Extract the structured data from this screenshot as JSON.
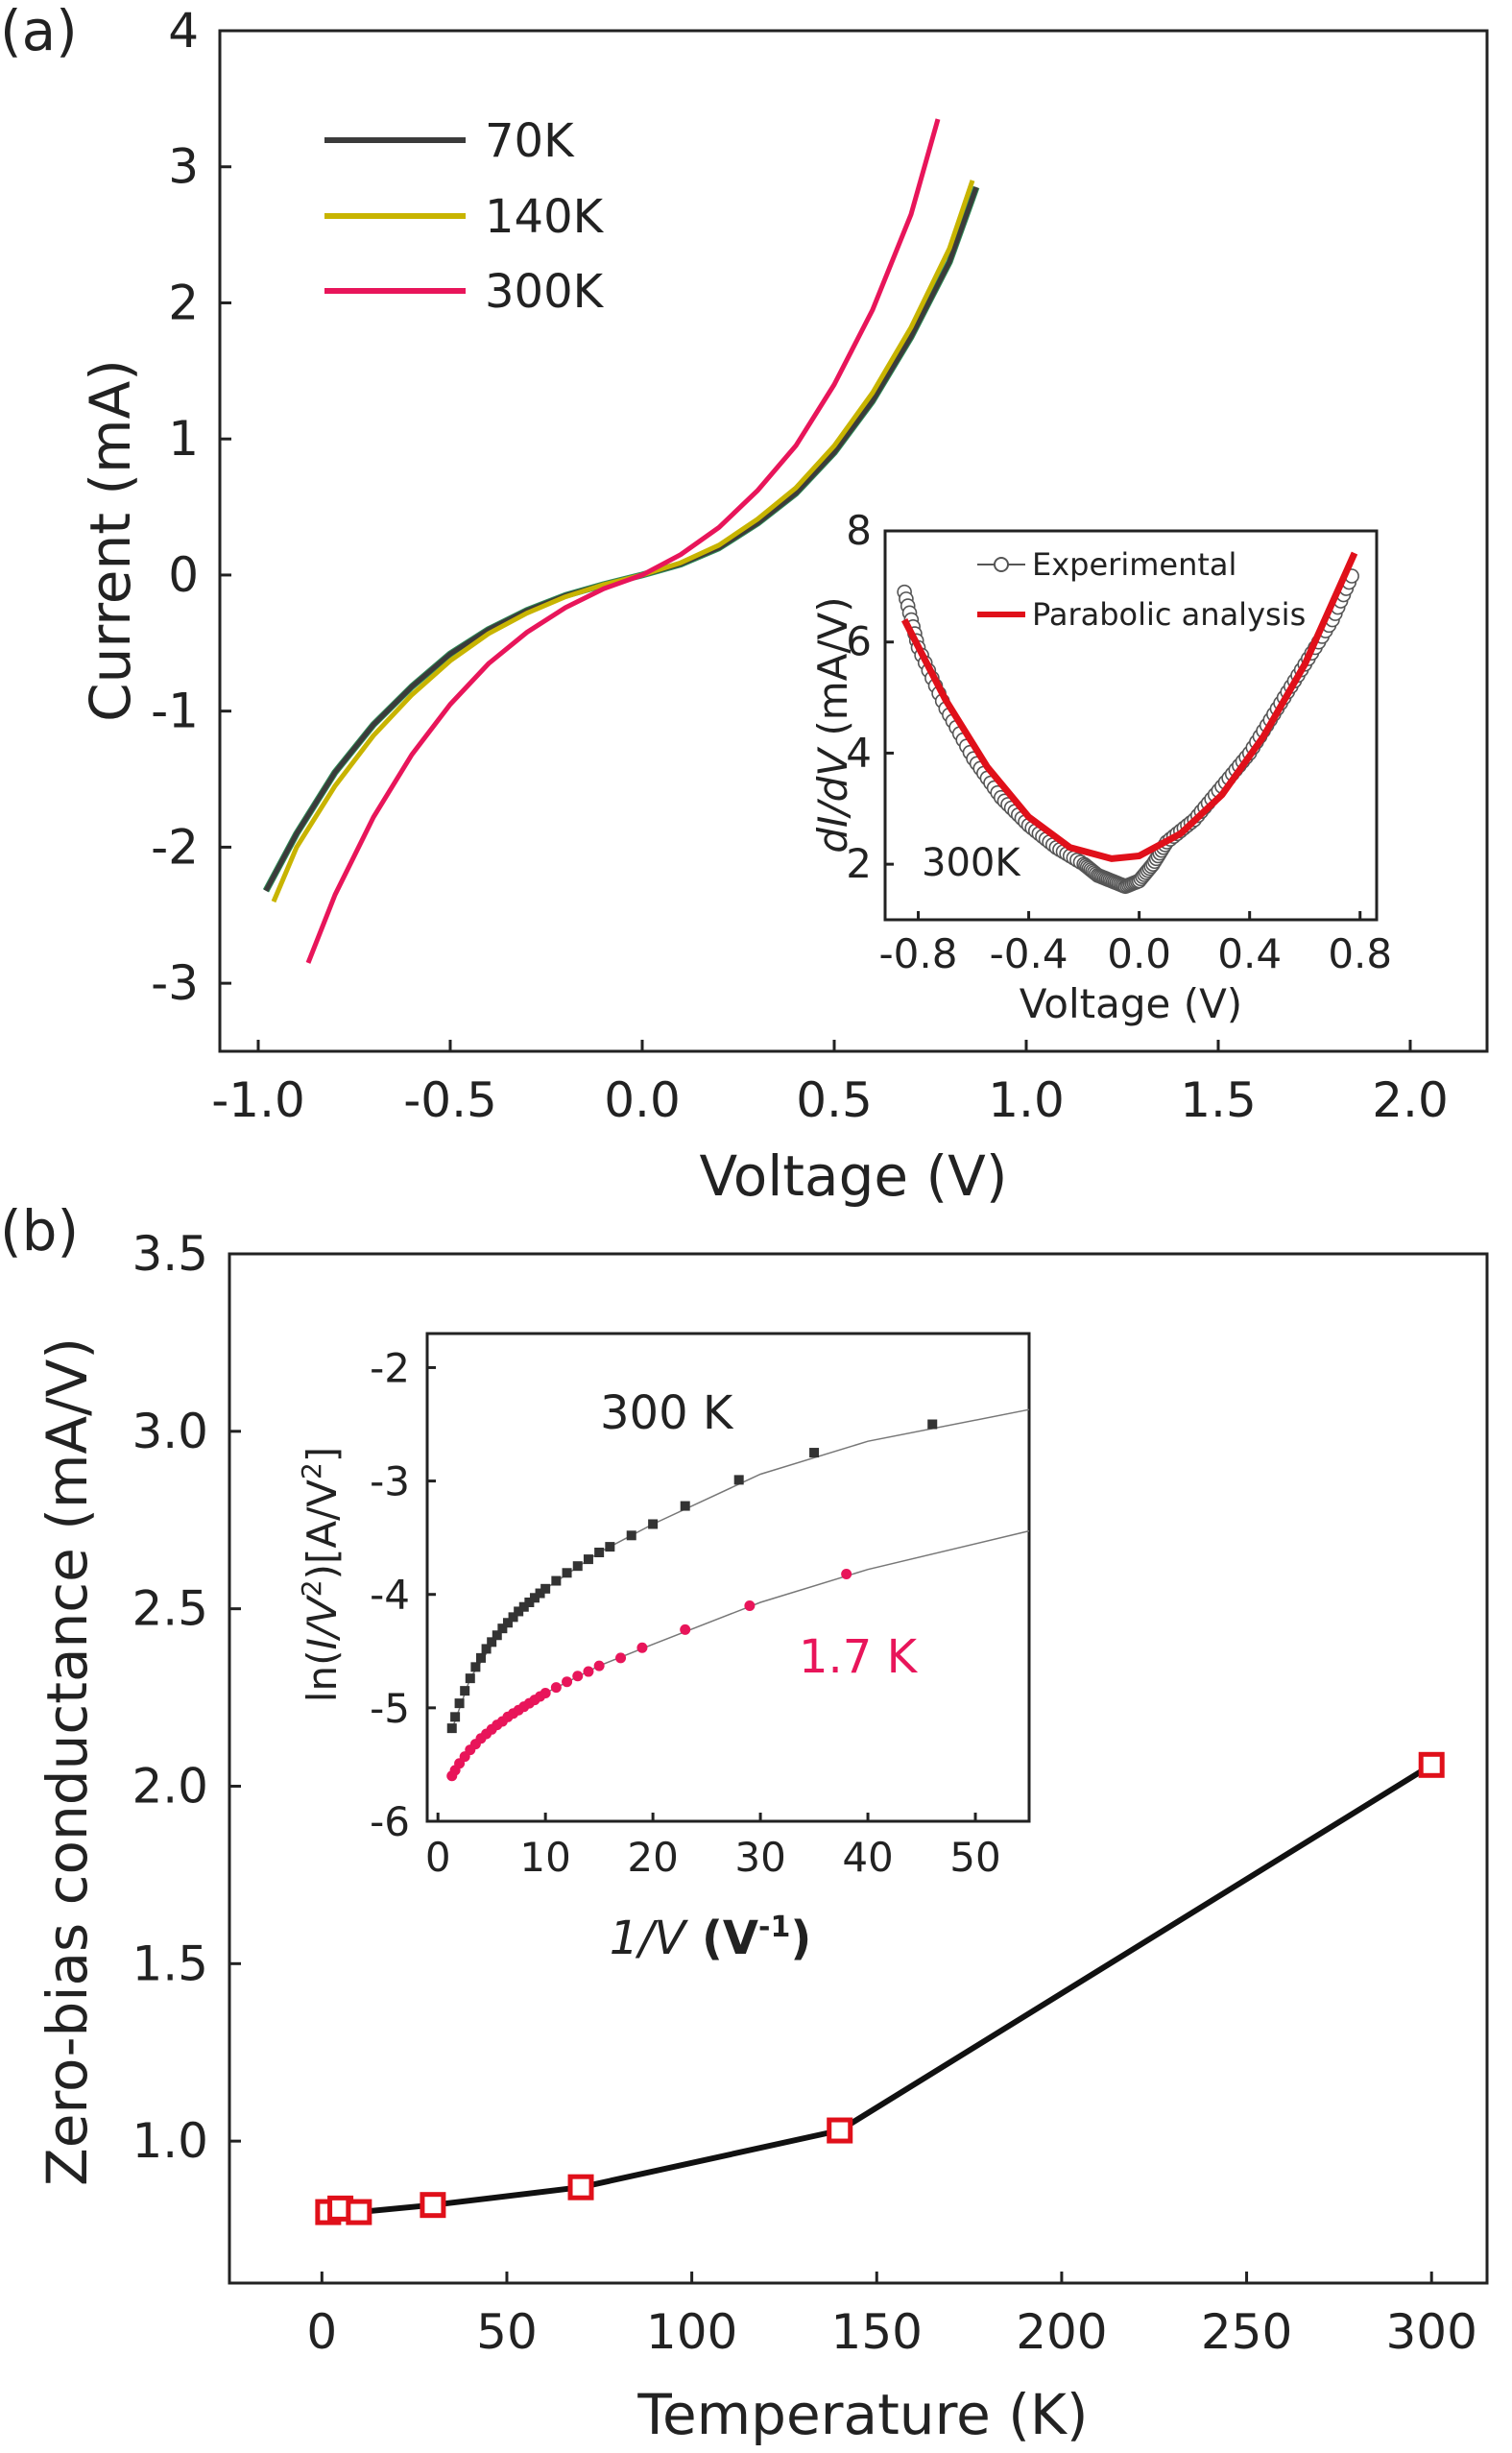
{
  "colors": {
    "axis": "#222222",
    "s70": "#3b3b3b",
    "s70_edge": "#2e8b57",
    "s140": "#c8b400",
    "s300": "#e8155a",
    "red": "#e0101a",
    "inset_300": "#333333",
    "inset_17": "#e8155a"
  },
  "chart_data": [
    {
      "panel": "(a)",
      "type": "line",
      "xlabel": "Voltage (V)",
      "ylabel": "Current (mA)",
      "xlim": [
        -1.1,
        2.2
      ],
      "ylim": [
        -3.5,
        4
      ],
      "xticks": [
        -1.0,
        -0.5,
        0.0,
        0.5,
        1.0,
        1.5,
        2.0
      ],
      "xtick_labels": [
        "-1.0",
        "-0.5",
        "0.0",
        "0.5",
        "1.0",
        "1.5",
        "2.0"
      ],
      "yticks": [
        -3,
        -2,
        -1,
        0,
        1,
        2,
        3,
        4
      ],
      "ytick_labels": [
        "-3",
        "-2",
        "-1",
        "0",
        "1",
        "2",
        "3",
        "4"
      ],
      "legend_position": "top-left",
      "series": [
        {
          "name": "70K",
          "color": "#3b3b3b",
          "x": [
            -0.98,
            -0.9,
            -0.8,
            -0.7,
            -0.6,
            -0.5,
            -0.4,
            -0.3,
            -0.2,
            -0.1,
            0.0,
            0.1,
            0.2,
            0.3,
            0.4,
            0.5,
            0.6,
            0.7,
            0.8,
            0.87
          ],
          "y": [
            -2.32,
            -1.9,
            -1.45,
            -1.1,
            -0.82,
            -0.58,
            -0.4,
            -0.26,
            -0.15,
            -0.07,
            0.0,
            0.08,
            0.2,
            0.38,
            0.6,
            0.9,
            1.28,
            1.75,
            2.3,
            2.85
          ]
        },
        {
          "name": "140K",
          "color": "#c8b400",
          "x": [
            -0.96,
            -0.9,
            -0.8,
            -0.7,
            -0.6,
            -0.5,
            -0.4,
            -0.3,
            -0.2,
            -0.1,
            0.0,
            0.1,
            0.2,
            0.3,
            0.4,
            0.5,
            0.6,
            0.7,
            0.8,
            0.86
          ],
          "y": [
            -2.4,
            -2.0,
            -1.55,
            -1.18,
            -0.88,
            -0.63,
            -0.43,
            -0.28,
            -0.16,
            -0.07,
            0.0,
            0.09,
            0.22,
            0.41,
            0.64,
            0.95,
            1.34,
            1.82,
            2.4,
            2.9
          ]
        },
        {
          "name": "300K",
          "color": "#e8155a",
          "x": [
            -0.87,
            -0.8,
            -0.7,
            -0.6,
            -0.5,
            -0.4,
            -0.3,
            -0.2,
            -0.1,
            0.0,
            0.1,
            0.2,
            0.3,
            0.4,
            0.5,
            0.6,
            0.7,
            0.77
          ],
          "y": [
            -2.85,
            -2.35,
            -1.78,
            -1.32,
            -0.95,
            -0.65,
            -0.42,
            -0.24,
            -0.1,
            0.0,
            0.15,
            0.35,
            0.62,
            0.95,
            1.4,
            1.95,
            2.65,
            3.35
          ]
        }
      ],
      "inset": {
        "type": "scatter+line",
        "xlabel_italic": "Voltage (V)",
        "ylabel": [
          "dI/dV",
          " (mA/V)"
        ],
        "xlim": [
          -0.92,
          0.86
        ],
        "ylim": [
          1,
          8
        ],
        "xticks": [
          -0.8,
          -0.4,
          0.0,
          0.4,
          0.8
        ],
        "xtick_labels": [
          "-0.8",
          "-0.4",
          "0.0",
          "0.4",
          "0.8"
        ],
        "yticks": [
          2,
          4,
          6,
          8
        ],
        "ytick_labels": [
          "2",
          "4",
          "6",
          "8"
        ],
        "annotation": "300K",
        "series": [
          {
            "name": "Experimental",
            "marker": "open-circle",
            "x": [
              -0.85,
              -0.8,
              -0.7,
              -0.6,
              -0.5,
              -0.4,
              -0.3,
              -0.2,
              -0.15,
              -0.1,
              -0.05,
              0.0,
              0.05,
              0.1,
              0.2,
              0.3,
              0.4,
              0.5,
              0.6,
              0.7,
              0.78
            ],
            "y": [
              6.9,
              5.9,
              4.8,
              3.9,
              3.2,
              2.7,
              2.3,
              2.0,
              1.8,
              1.7,
              1.6,
              1.7,
              2.0,
              2.4,
              2.8,
              3.4,
              4.0,
              4.8,
              5.6,
              6.4,
              7.3
            ]
          },
          {
            "name": "Parabolic analysis",
            "color": "#e0101a",
            "x": [
              -0.85,
              -0.7,
              -0.55,
              -0.4,
              -0.25,
              -0.1,
              0.0,
              0.15,
              0.3,
              0.45,
              0.6,
              0.78
            ],
            "y": [
              6.4,
              4.95,
              3.75,
              2.85,
              2.3,
              2.1,
              2.15,
              2.55,
              3.25,
              4.3,
              5.6,
              7.6
            ]
          }
        ]
      }
    },
    {
      "panel": "(b)",
      "type": "line+scatter",
      "xlabel": "Temperature (K)",
      "ylabel": "Zero-bias conductance (mA/V)",
      "xlim": [
        -25,
        315
      ],
      "ylim": [
        0.6,
        3.5
      ],
      "xticks": [
        0,
        50,
        100,
        150,
        200,
        250,
        300
      ],
      "xtick_labels": [
        "0",
        "50",
        "100",
        "150",
        "200",
        "250",
        "300"
      ],
      "yticks": [
        1.0,
        1.5,
        2.0,
        2.5,
        3.0,
        3.5
      ],
      "ytick_labels": [
        "1.0",
        "1.5",
        "2.0",
        "2.5",
        "3.0",
        "3.5"
      ],
      "series": [
        {
          "x": [
            1.7,
            5,
            10,
            30,
            70,
            140,
            300
          ],
          "y": [
            0.8,
            0.81,
            0.8,
            0.82,
            0.87,
            1.03,
            2.06
          ]
        }
      ],
      "inset": {
        "type": "scatter+line",
        "xlabel": [
          "1/V",
          " (V",
          "-1",
          ")"
        ],
        "ylabel": [
          "ln(",
          "I/V",
          "2",
          ")[A/V",
          "2",
          "]"
        ],
        "xlim": [
          -1,
          55
        ],
        "ylim": [
          -6,
          -1.7
        ],
        "xticks": [
          0,
          10,
          20,
          30,
          40,
          50
        ],
        "xtick_labels": [
          "0",
          "10",
          "20",
          "30",
          "40",
          "50"
        ],
        "yticks": [
          -6,
          -5,
          -4,
          -3,
          -2
        ],
        "ytick_labels": [
          "-6",
          "-5",
          "-4",
          "-3",
          "-2"
        ],
        "series": [
          {
            "name": "300 K",
            "color": "#333333",
            "x": [
              1.3,
              1.6,
              2,
              2.5,
              3,
              3.5,
              4,
              4.5,
              5,
              5.5,
              6,
              6.5,
              7,
              7.5,
              8,
              8.5,
              9,
              9.5,
              10,
              11,
              12,
              13,
              14,
              15,
              16,
              18,
              20,
              23,
              28,
              35,
              46
            ],
            "y": [
              -5.18,
              -5.08,
              -4.96,
              -4.85,
              -4.74,
              -4.64,
              -4.56,
              -4.48,
              -4.42,
              -4.36,
              -4.3,
              -4.25,
              -4.2,
              -4.15,
              -4.11,
              -4.07,
              -4.03,
              -3.99,
              -3.95,
              -3.88,
              -3.81,
              -3.75,
              -3.69,
              -3.63,
              -3.58,
              -3.48,
              -3.38,
              -3.22,
              -2.99,
              -2.75,
              -2.5
            ]
          },
          {
            "name": "1.7 K",
            "color": "#e8155a",
            "x": [
              1.3,
              1.6,
              2,
              2.5,
              3,
              3.5,
              4,
              4.5,
              5,
              5.5,
              6,
              6.5,
              7,
              7.5,
              8,
              8.5,
              9,
              9.5,
              10,
              11,
              12,
              13,
              14,
              15,
              17,
              19,
              23,
              29,
              38
            ],
            "y": [
              -5.6,
              -5.55,
              -5.49,
              -5.43,
              -5.37,
              -5.32,
              -5.27,
              -5.23,
              -5.19,
              -5.15,
              -5.12,
              -5.08,
              -5.05,
              -5.02,
              -4.99,
              -4.96,
              -4.93,
              -4.9,
              -4.87,
              -4.82,
              -4.77,
              -4.72,
              -4.68,
              -4.63,
              -4.56,
              -4.47,
              -4.31,
              -4.1,
              -3.82
            ]
          }
        ],
        "fit_lines": [
          {
            "series": "300 K",
            "x": [
              1.2,
              3,
              6,
              10,
              15,
              20,
              30,
              40,
              55
            ],
            "y": [
              -5.22,
              -4.74,
              -4.3,
              -3.95,
              -3.63,
              -3.38,
              -2.94,
              -2.65,
              -2.37
            ]
          },
          {
            "series": "1.7 K",
            "x": [
              1.2,
              3,
              6,
              10,
              15,
              20,
              30,
              40,
              55
            ],
            "y": [
              -5.62,
              -5.37,
              -5.12,
              -4.87,
              -4.63,
              -4.44,
              -4.07,
              -3.78,
              -3.44
            ]
          }
        ],
        "annotations": [
          "300 K",
          "1.7 K"
        ]
      }
    }
  ]
}
